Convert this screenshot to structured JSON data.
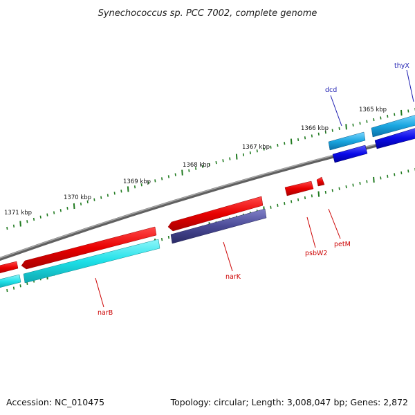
{
  "title": "Synechococcus sp. PCC 7002, complete genome",
  "accession": "Accession: NC_010475",
  "summary": "Topology: circular; Length: 3,008,047 bp; Genes: 2,872",
  "colors": {
    "backbone": "#888888",
    "tick": "#1f7a1f",
    "forward_cds": "#ff1a1a",
    "reverse_cds_cyan": "#1ee0e8",
    "reverse_cds_blue": "#0a0ae8",
    "reverse_cds_light_blue": "#1aa6e0",
    "reverse_cds_slate": "#4a4a96",
    "forward_label": "#cc0000",
    "reverse_label": "#1a1ab0"
  },
  "ticks": [
    {
      "kbp": 1365,
      "label": "1365 kbp"
    },
    {
      "kbp": 1366,
      "label": "1366 kbp"
    },
    {
      "kbp": 1367,
      "label": "1367 kbp"
    },
    {
      "kbp": 1368,
      "label": "1368 kbp"
    },
    {
      "kbp": 1369,
      "label": "1369 kbp"
    },
    {
      "kbp": 1370,
      "label": "1370 kbp"
    },
    {
      "kbp": 1371,
      "label": "1371 kbp"
    }
  ],
  "genes": [
    {
      "name": "thyX",
      "color": "reverse_label"
    },
    {
      "name": "dcd",
      "color": "reverse_label"
    },
    {
      "name": "narB",
      "color": "forward_label"
    },
    {
      "name": "narK",
      "color": "forward_label"
    },
    {
      "name": "psbW2",
      "color": "forward_label"
    },
    {
      "name": "petM",
      "color": "forward_label"
    }
  ]
}
